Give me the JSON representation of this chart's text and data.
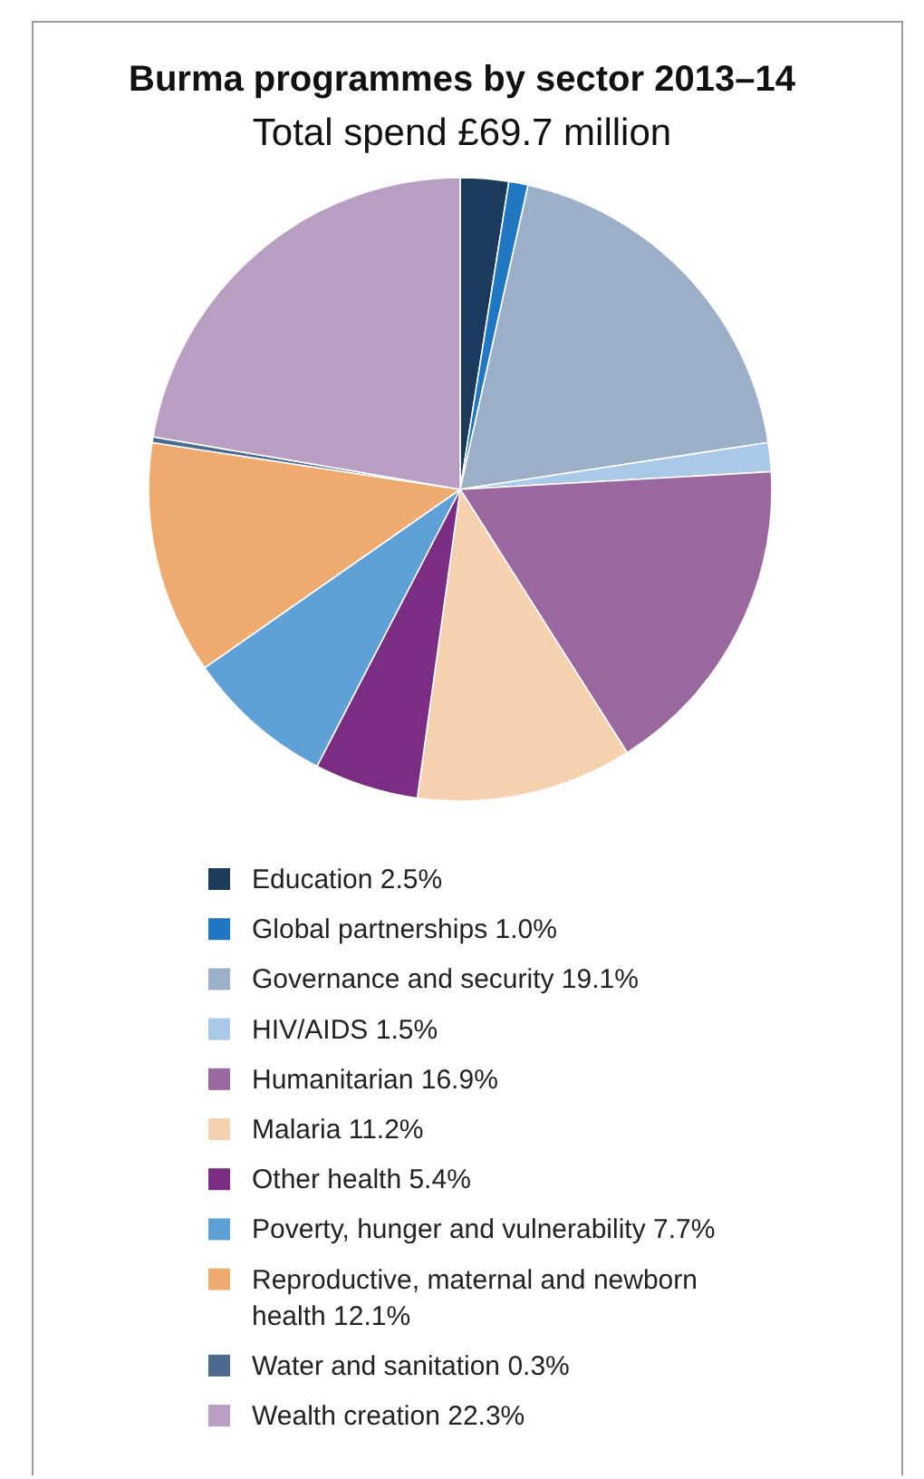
{
  "chart_data": {
    "type": "pie",
    "title": "Burma programmes by sector 2013–14",
    "subtitle": "Total spend £69.7 million",
    "categories": [
      "Education 2.5%",
      "Global partnerships 1.0%",
      "Governance and security 19.1%",
      "HIV/AIDS 1.5%",
      "Humanitarian 16.9%",
      "Malaria 11.2%",
      "Other health 5.4%",
      "Poverty, hunger and vulnerability 7.7%",
      "Reproductive, maternal and newborn health 12.1%",
      "Water and sanitation 0.3%",
      "Wealth creation 22.3%"
    ],
    "values": [
      2.5,
      1.0,
      19.1,
      1.5,
      16.9,
      11.2,
      5.4,
      7.7,
      12.1,
      0.3,
      22.3
    ],
    "colors": [
      "#1b3a5c",
      "#1f78c1",
      "#9bafc8",
      "#aac8e8",
      "#9a679f",
      "#f6d1b0",
      "#7b2c83",
      "#5ea1d6",
      "#eeaa6f",
      "#4d6b8f",
      "#b99ec4"
    ],
    "legend": "bottom"
  }
}
